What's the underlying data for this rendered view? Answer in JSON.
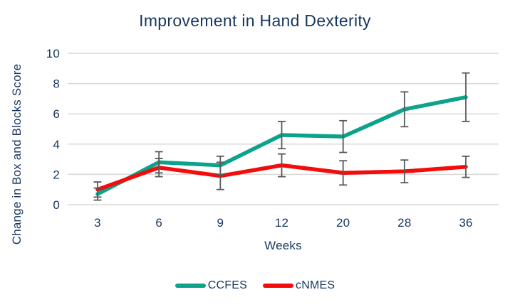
{
  "chart_data": {
    "type": "line",
    "title": "Improvement in Hand Dexterity",
    "xlabel": "Weeks",
    "ylabel": "Change in Box and Blocks Score",
    "categories": [
      "3",
      "6",
      "9",
      "12",
      "20",
      "28",
      "36"
    ],
    "yticks": [
      0,
      2,
      4,
      6,
      8,
      10
    ],
    "ylim": [
      0,
      10
    ],
    "grid": true,
    "legend_position": "bottom-center",
    "series": [
      {
        "name": "CCFES",
        "color": "#0BA38A",
        "values": [
          0.7,
          2.8,
          2.6,
          4.6,
          4.5,
          6.3,
          7.1
        ],
        "error": [
          0.4,
          0.7,
          0.6,
          0.9,
          1.05,
          1.15,
          1.6
        ]
      },
      {
        "name": "cNMES",
        "color": "#F40B0B",
        "values": [
          1.0,
          2.45,
          1.9,
          2.6,
          2.1,
          2.2,
          2.5
        ],
        "error": [
          0.5,
          0.6,
          0.9,
          0.75,
          0.8,
          0.75,
          0.7
        ]
      }
    ],
    "colors": {
      "text": "#17375E",
      "gridline": "#D9D9D9",
      "error_bar": "#595959",
      "background": "#FFFFFF"
    }
  }
}
